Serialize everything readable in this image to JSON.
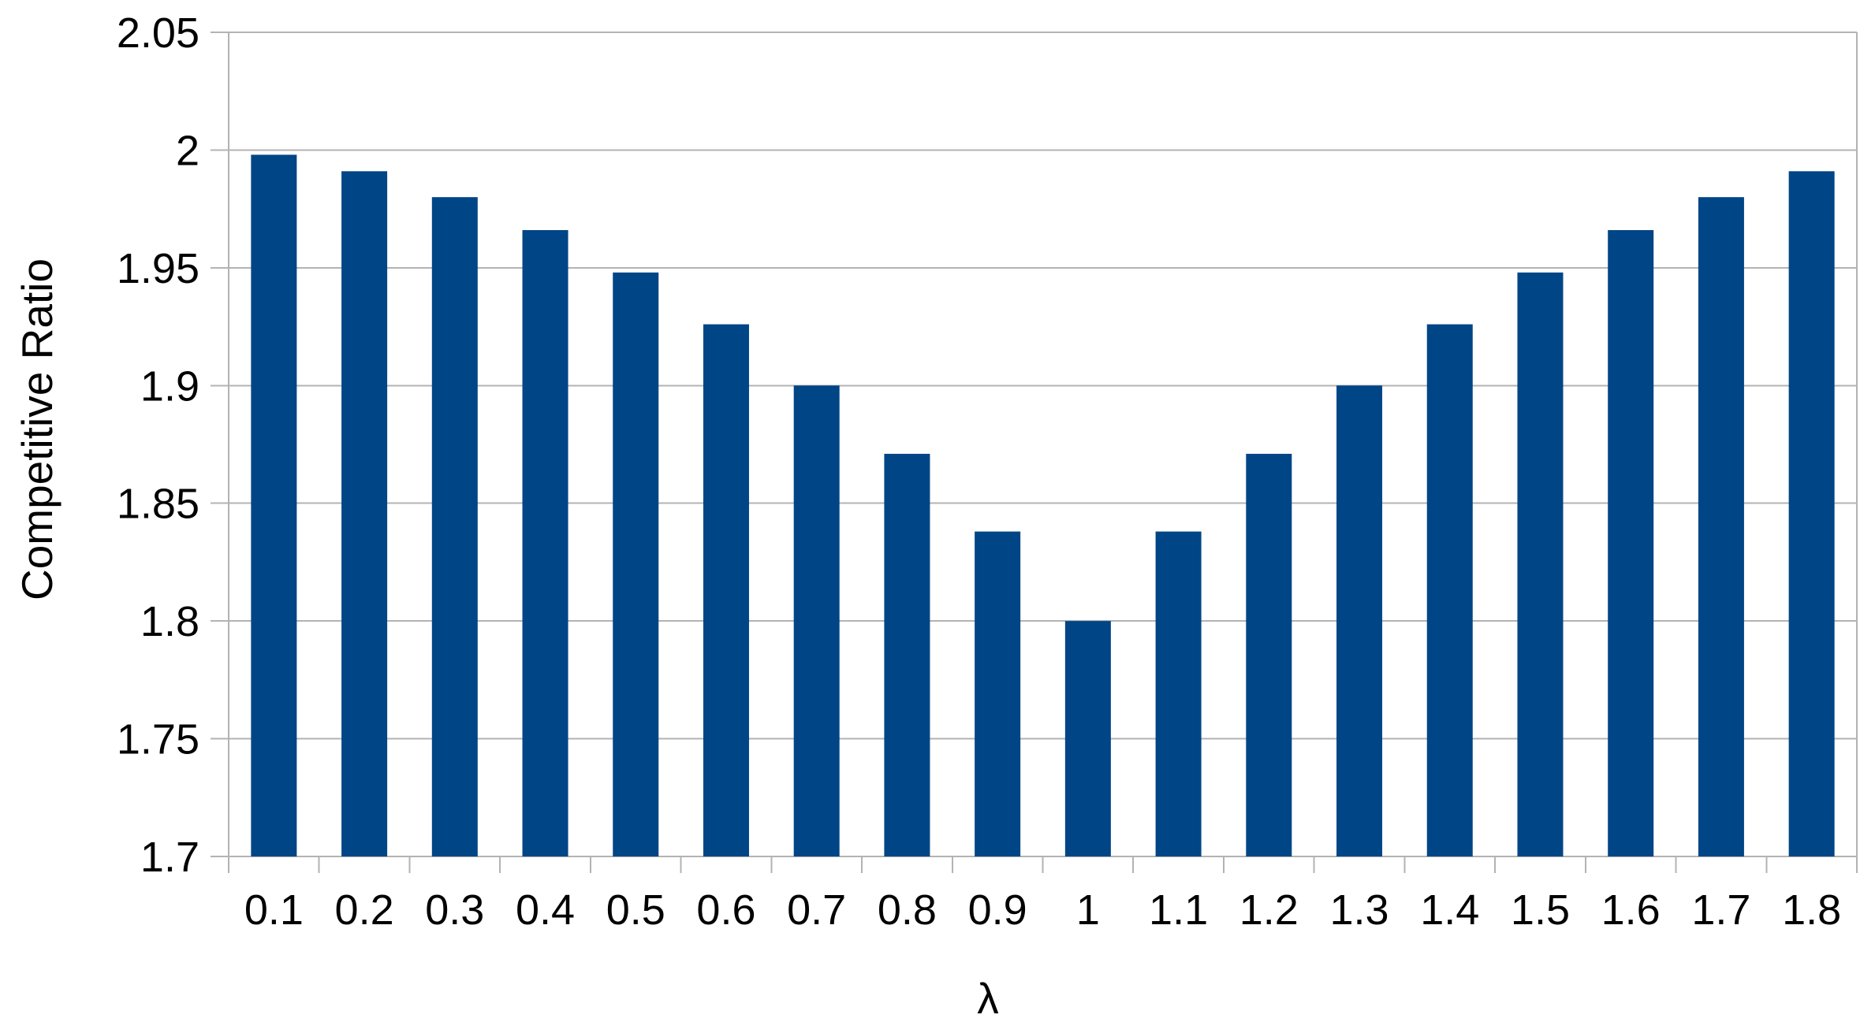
{
  "chart_data": {
    "type": "bar",
    "title": "",
    "xlabel": "λ",
    "ylabel": "Competitive Ratio",
    "categories": [
      "0.1",
      "0.2",
      "0.3",
      "0.4",
      "0.5",
      "0.6",
      "0.7",
      "0.8",
      "0.9",
      "1",
      "1.1",
      "1.2",
      "1.3",
      "1.4",
      "1.5",
      "1.6",
      "1.7",
      "1.8"
    ],
    "values": [
      1.998,
      1.991,
      1.98,
      1.966,
      1.948,
      1.926,
      1.9,
      1.871,
      1.838,
      1.8,
      1.838,
      1.871,
      1.9,
      1.926,
      1.948,
      1.966,
      1.98,
      1.991
    ],
    "ylim": [
      1.7,
      2.05
    ],
    "ytick_step": 0.05,
    "ytick_labels": [
      "2.05",
      "2",
      "1.95",
      "1.9",
      "1.85",
      "1.8",
      "1.75",
      "1.7"
    ],
    "grid": true,
    "legend_position": "none",
    "bar_color": "#004586",
    "grid_color": "#b3b3b3",
    "axis_color": "#b3b3b3"
  }
}
